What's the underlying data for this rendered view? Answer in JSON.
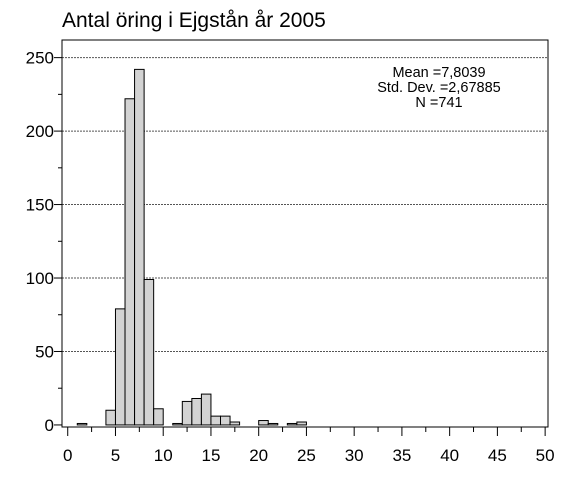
{
  "chart_data": {
    "type": "histogram",
    "title": "Antal öring i Ejgstån år 2005",
    "bins": [
      0,
      1,
      2,
      3,
      4,
      5,
      6,
      7,
      8,
      9,
      10,
      11,
      12,
      13,
      14,
      15,
      16,
      17,
      18,
      19,
      20,
      21,
      22,
      23,
      24,
      25
    ],
    "counts": [
      0,
      1,
      0,
      0,
      10,
      79,
      222,
      242,
      99,
      11,
      0,
      1,
      16,
      18,
      21,
      6,
      6,
      2,
      0,
      0,
      3,
      1,
      0,
      1,
      2
    ],
    "color": "#d3d3d3",
    "xlim": [
      -0.6,
      50.3
    ],
    "xticks": [
      0,
      5,
      10,
      15,
      20,
      25,
      30,
      35,
      40,
      45,
      50
    ],
    "ylim": [
      -1.4,
      262
    ],
    "yticks": [
      0,
      50,
      100,
      150,
      200,
      250
    ],
    "grid": true,
    "annotations": [
      "Mean =7,8039",
      "Std. Dev. =2,67885",
      "N =741"
    ]
  }
}
